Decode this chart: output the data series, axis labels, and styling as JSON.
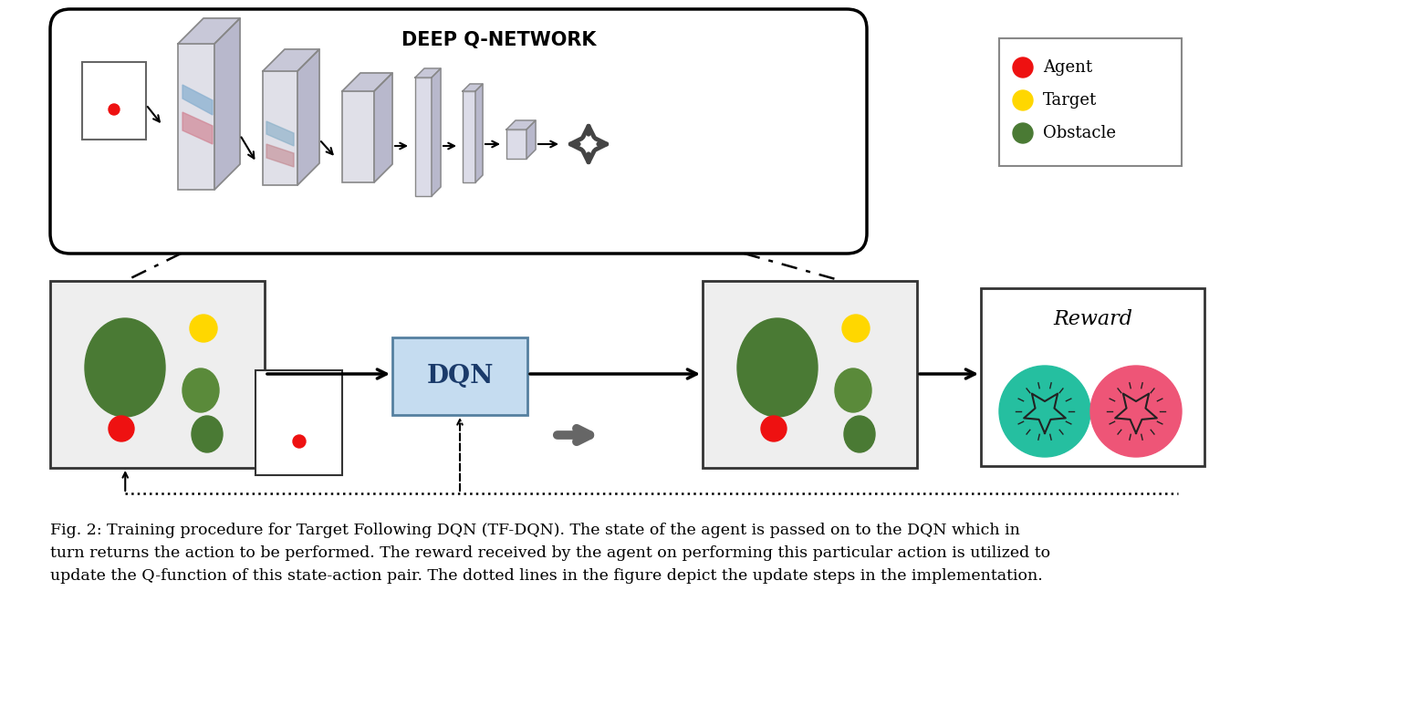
{
  "title": "DEEP Q-NETWORK",
  "dqn_label": "DQN",
  "reward_label": "Reward",
  "legend_items": [
    {
      "label": "Agent",
      "color": "#EE1111"
    },
    {
      "label": "Target",
      "color": "#FFD700"
    },
    {
      "label": "Obstacle",
      "color": "#4A7A34"
    }
  ],
  "caption_line1": "Fig. 2: Training procedure for Target Following DQN (TF-DQN). The state of the agent is passed on to the DQN which in",
  "caption_line2": "turn returns the action to be performed. The reward received by the agent on performing this particular action is utilized to",
  "caption_line3": "update the Q-function of this state-action pair. The dotted lines in the figure depict the update steps in the implementation.",
  "bg_color": "#FFFFFF",
  "dqn_box_color": "#C5DCF0",
  "green_dark": "#4A7A34",
  "green_mid": "#5A8A3A",
  "red_color": "#EE1111",
  "yellow_color": "#FFD700",
  "teal_color": "#25BFA0",
  "pink_color": "#EE5577",
  "gray_box": "#EEEEEE",
  "fc_color": "#DCDCE8",
  "conv_face": "#E0E0E8",
  "conv_top": "#C8C8D8",
  "conv_side": "#B8B8CC"
}
